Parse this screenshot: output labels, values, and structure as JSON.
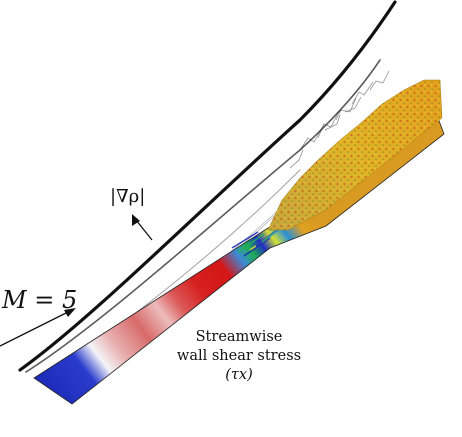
{
  "labels": {
    "mach": "M = 5",
    "density_gradient": "|∇ρ|",
    "caption_line1": "Streamwise",
    "caption_line2": "wall shear stress",
    "caption_line3": "(τx)"
  },
  "colors": {
    "laminar_low": "#1f2fbf",
    "laminar_high": "#d81818",
    "transition": "#17a35a",
    "turbulent": "#d9a520",
    "shock_lines": "#111111"
  }
}
